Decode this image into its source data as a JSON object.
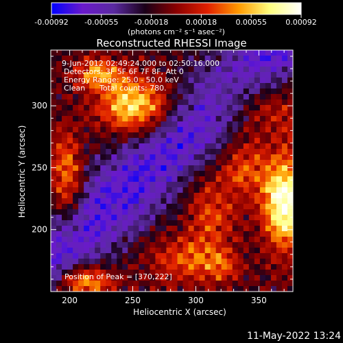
{
  "colorbar": {
    "tick_labels": [
      "-0.00092",
      "-0.00055",
      "-0.00018",
      "0.00018",
      "0.00055",
      "0.00092"
    ],
    "range": [
      -0.00092,
      0.00092
    ],
    "unit_label": "(photons cm⁻² s⁻¹ asec⁻²)",
    "colors": [
      "#0000ff",
      "#6a1acb",
      "#5a2aa0",
      "#1a0018",
      "#8a0000",
      "#e02000",
      "#ff9a00",
      "#ffff80",
      "#ffffff"
    ]
  },
  "chart_data": {
    "type": "heatmap",
    "title": "Reconstructed RHESSI Image",
    "xlabel": "Heliocentric X (arcsec)",
    "ylabel": "Heliocentric Y (arcsec)",
    "xlim": [
      185,
      377
    ],
    "ylim": [
      150,
      345
    ],
    "x_ticks": [
      200,
      250,
      300,
      350
    ],
    "y_ticks": [
      200,
      250,
      300
    ],
    "x_tick_labels": [
      "200",
      "250",
      "300",
      "350"
    ],
    "y_tick_labels": [
      "200",
      "250",
      "300"
    ],
    "annotations": {
      "time_range": "9-Jun-2012 02:49:24.000 to 02:50:16.000",
      "detectors": "Detectors: 3F 5F 6F 7F 8F, Att 0",
      "energy": "Energy Range: 25.0 - 50.0 keV",
      "clean": "Clean",
      "counts": "Total counts: 780.",
      "peak": "Position of Peak = [370,222]"
    },
    "peak_position": [
      370,
      222
    ],
    "sources": [
      {
        "x": 370,
        "y": 222,
        "sx": 12,
        "sy": 26,
        "amp": 1.0
      },
      {
        "x": 252,
        "y": 300,
        "sx": 20,
        "sy": 16,
        "amp": 0.82
      },
      {
        "x": 222,
        "y": 326,
        "sx": 13,
        "sy": 9,
        "amp": 0.55
      },
      {
        "x": 212,
        "y": 158,
        "sx": 16,
        "sy": 10,
        "amp": 0.72
      },
      {
        "x": 198,
        "y": 240,
        "sx": 9,
        "sy": 26,
        "amp": 0.55
      },
      {
        "x": 352,
        "y": 300,
        "sx": 26,
        "sy": 18,
        "amp": 0.38
      },
      {
        "x": 338,
        "y": 250,
        "sx": 12,
        "sy": 16,
        "amp": 0.42
      },
      {
        "x": 292,
        "y": 175,
        "sx": 22,
        "sy": 14,
        "amp": 0.4
      },
      {
        "x": 312,
        "y": 215,
        "sx": 14,
        "sy": 22,
        "amp": 0.38
      },
      {
        "x": 322,
        "y": 170,
        "sx": 10,
        "sy": 8,
        "amp": 0.3
      }
    ],
    "negative_band": {
      "x0": 185,
      "y0": 175,
      "slope": 0.95,
      "width": 22,
      "amp": -0.55
    }
  },
  "footer": {
    "timestamp": "11-May-2022 13:24"
  }
}
